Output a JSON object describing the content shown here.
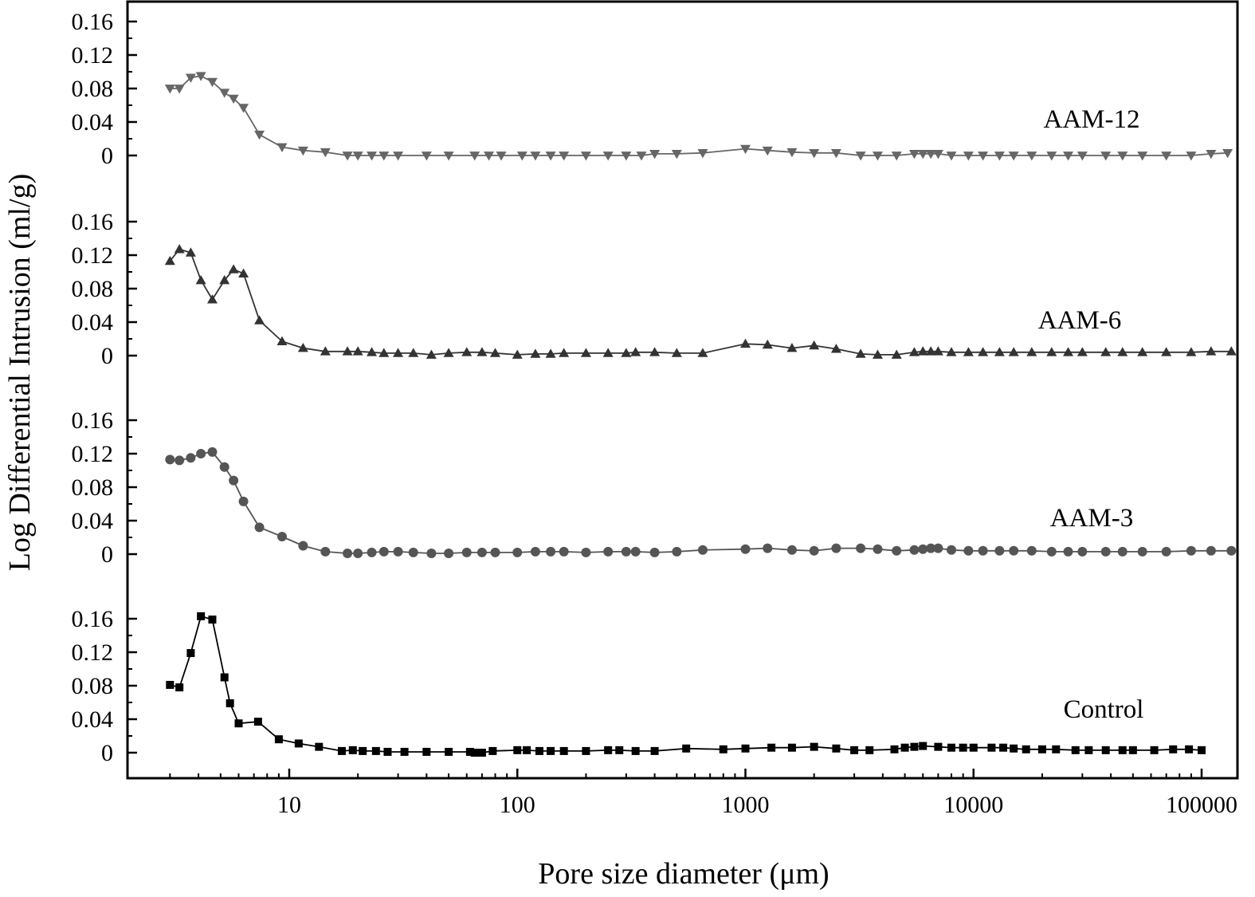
{
  "chart_data": {
    "type": "line",
    "xlabel": "Pore size diameter (μm)",
    "ylabel": "Log Differential Intrusion (ml/g)",
    "x_scale": "log",
    "xlim": [
      2.5,
      150000
    ],
    "x_ticks": [
      10,
      100,
      1000,
      10000,
      100000
    ],
    "x_tick_labels": [
      "10",
      "100",
      "1000",
      "10000",
      "100000"
    ],
    "ylim_per_panel": [
      0,
      0.18
    ],
    "y_ticks": [
      0,
      0.04,
      0.08,
      0.12,
      0.16
    ],
    "y_tick_labels": [
      "0",
      "0.04",
      "0.08",
      "0.12",
      "0.16"
    ],
    "grid": false,
    "legend": "none (labels placed beside each curve)",
    "series": [
      {
        "name": "AAM-12",
        "marker": "triangle-down",
        "color": "#666666",
        "points": [
          [
            3.0,
            0.08
          ],
          [
            3.3,
            0.08
          ],
          [
            3.7,
            0.093
          ],
          [
            4.1,
            0.095
          ],
          [
            4.6,
            0.088
          ],
          [
            5.2,
            0.075
          ],
          [
            5.7,
            0.068
          ],
          [
            6.3,
            0.057
          ],
          [
            7.4,
            0.025
          ],
          [
            9.3,
            0.01
          ],
          [
            11.5,
            0.006
          ],
          [
            14.4,
            0.004
          ],
          [
            18,
            0.0
          ],
          [
            20,
            0.0
          ],
          [
            23,
            0.0
          ],
          [
            26,
            0.0
          ],
          [
            30,
            0.0
          ],
          [
            40,
            0.0
          ],
          [
            50,
            0.0
          ],
          [
            65,
            0.0
          ],
          [
            75,
            0.0
          ],
          [
            85,
            0.0
          ],
          [
            105,
            0.0
          ],
          [
            120,
            0.0
          ],
          [
            140,
            0.0
          ],
          [
            160,
            0.0
          ],
          [
            200,
            0.0
          ],
          [
            250,
            0.0
          ],
          [
            300,
            0.0
          ],
          [
            350,
            0.0
          ],
          [
            400,
            0.002
          ],
          [
            500,
            0.002
          ],
          [
            650,
            0.003
          ],
          [
            1000,
            0.008
          ],
          [
            1250,
            0.006
          ],
          [
            1600,
            0.004
          ],
          [
            2000,
            0.003
          ],
          [
            2500,
            0.003
          ],
          [
            3200,
            0.0
          ],
          [
            3800,
            0.0
          ],
          [
            4600,
            0.0
          ],
          [
            5500,
            0.002
          ],
          [
            6000,
            0.002
          ],
          [
            6500,
            0.002
          ],
          [
            7000,
            0.002
          ],
          [
            8000,
            0.0
          ],
          [
            9500,
            0.0
          ],
          [
            11000,
            0.0
          ],
          [
            13000,
            0.0
          ],
          [
            15000,
            0.0
          ],
          [
            18000,
            0.0
          ],
          [
            22000,
            0.0
          ],
          [
            26000,
            0.0
          ],
          [
            30000,
            0.0
          ],
          [
            38000,
            0.0
          ],
          [
            45000,
            0.0
          ],
          [
            55000,
            0.0
          ],
          [
            70000,
            0.0
          ],
          [
            90000,
            0.0
          ],
          [
            110000,
            0.002
          ],
          [
            130000,
            0.003
          ]
        ]
      },
      {
        "name": "AAM-6",
        "marker": "triangle-up",
        "color": "#333333",
        "points": [
          [
            3.0,
            0.113
          ],
          [
            3.3,
            0.127
          ],
          [
            3.7,
            0.123
          ],
          [
            4.1,
            0.09
          ],
          [
            4.6,
            0.067
          ],
          [
            5.2,
            0.09
          ],
          [
            5.7,
            0.103
          ],
          [
            6.3,
            0.098
          ],
          [
            7.4,
            0.042
          ],
          [
            9.3,
            0.017
          ],
          [
            11.5,
            0.009
          ],
          [
            14.4,
            0.005
          ],
          [
            18,
            0.005
          ],
          [
            20,
            0.005
          ],
          [
            23,
            0.004
          ],
          [
            26,
            0.003
          ],
          [
            30,
            0.003
          ],
          [
            35,
            0.003
          ],
          [
            42,
            0.001
          ],
          [
            50,
            0.003
          ],
          [
            60,
            0.004
          ],
          [
            70,
            0.004
          ],
          [
            80,
            0.003
          ],
          [
            100,
            0.001
          ],
          [
            120,
            0.002
          ],
          [
            140,
            0.002
          ],
          [
            160,
            0.003
          ],
          [
            200,
            0.003
          ],
          [
            250,
            0.003
          ],
          [
            300,
            0.003
          ],
          [
            330,
            0.004
          ],
          [
            400,
            0.004
          ],
          [
            500,
            0.003
          ],
          [
            650,
            0.003
          ],
          [
            1000,
            0.014
          ],
          [
            1250,
            0.013
          ],
          [
            1600,
            0.009
          ],
          [
            2000,
            0.012
          ],
          [
            2500,
            0.008
          ],
          [
            3200,
            0.002
          ],
          [
            3800,
            0.001
          ],
          [
            4600,
            0.001
          ],
          [
            5500,
            0.004
          ],
          [
            6000,
            0.005
          ],
          [
            6500,
            0.005
          ],
          [
            7000,
            0.005
          ],
          [
            8000,
            0.004
          ],
          [
            9500,
            0.004
          ],
          [
            11000,
            0.004
          ],
          [
            13000,
            0.004
          ],
          [
            15000,
            0.004
          ],
          [
            18000,
            0.004
          ],
          [
            22000,
            0.004
          ],
          [
            26000,
            0.004
          ],
          [
            30000,
            0.004
          ],
          [
            38000,
            0.004
          ],
          [
            45000,
            0.004
          ],
          [
            55000,
            0.004
          ],
          [
            70000,
            0.004
          ],
          [
            90000,
            0.004
          ],
          [
            110000,
            0.005
          ],
          [
            135000,
            0.005
          ]
        ]
      },
      {
        "name": "AAM-3",
        "marker": "circle",
        "color": "#555555",
        "points": [
          [
            3.0,
            0.113
          ],
          [
            3.3,
            0.112
          ],
          [
            3.7,
            0.115
          ],
          [
            4.1,
            0.12
          ],
          [
            4.6,
            0.122
          ],
          [
            5.2,
            0.104
          ],
          [
            5.7,
            0.088
          ],
          [
            6.3,
            0.063
          ],
          [
            7.4,
            0.032
          ],
          [
            9.3,
            0.021
          ],
          [
            11.5,
            0.01
          ],
          [
            14.4,
            0.003
          ],
          [
            18,
            0.001
          ],
          [
            20,
            0.001
          ],
          [
            23,
            0.002
          ],
          [
            26,
            0.003
          ],
          [
            30,
            0.003
          ],
          [
            35,
            0.002
          ],
          [
            42,
            0.001
          ],
          [
            50,
            0.001
          ],
          [
            60,
            0.002
          ],
          [
            70,
            0.002
          ],
          [
            80,
            0.002
          ],
          [
            100,
            0.002
          ],
          [
            120,
            0.003
          ],
          [
            140,
            0.003
          ],
          [
            160,
            0.003
          ],
          [
            200,
            0.002
          ],
          [
            250,
            0.003
          ],
          [
            300,
            0.003
          ],
          [
            330,
            0.003
          ],
          [
            400,
            0.002
          ],
          [
            500,
            0.003
          ],
          [
            650,
            0.005
          ],
          [
            1000,
            0.006
          ],
          [
            1250,
            0.007
          ],
          [
            1600,
            0.005
          ],
          [
            2000,
            0.004
          ],
          [
            2500,
            0.007
          ],
          [
            3200,
            0.007
          ],
          [
            3800,
            0.006
          ],
          [
            4600,
            0.004
          ],
          [
            5500,
            0.005
          ],
          [
            6000,
            0.006
          ],
          [
            6500,
            0.007
          ],
          [
            7000,
            0.007
          ],
          [
            8000,
            0.005
          ],
          [
            9500,
            0.004
          ],
          [
            11000,
            0.004
          ],
          [
            13000,
            0.004
          ],
          [
            15000,
            0.004
          ],
          [
            18000,
            0.004
          ],
          [
            22000,
            0.003
          ],
          [
            26000,
            0.003
          ],
          [
            30000,
            0.003
          ],
          [
            38000,
            0.003
          ],
          [
            45000,
            0.003
          ],
          [
            55000,
            0.003
          ],
          [
            70000,
            0.003
          ],
          [
            90000,
            0.004
          ],
          [
            110000,
            0.004
          ],
          [
            135000,
            0.004
          ]
        ]
      },
      {
        "name": "Control",
        "marker": "square",
        "color": "#000000",
        "points": [
          [
            3.0,
            0.081
          ],
          [
            3.3,
            0.078
          ],
          [
            3.7,
            0.119
          ],
          [
            4.1,
            0.163
          ],
          [
            4.6,
            0.159
          ],
          [
            5.2,
            0.09
          ],
          [
            5.5,
            0.059
          ],
          [
            6.0,
            0.035
          ],
          [
            7.3,
            0.037
          ],
          [
            9.0,
            0.016
          ],
          [
            11,
            0.011
          ],
          [
            13.5,
            0.007
          ],
          [
            17,
            0.002
          ],
          [
            19,
            0.003
          ],
          [
            21,
            0.002
          ],
          [
            24,
            0.002
          ],
          [
            27,
            0.001
          ],
          [
            32,
            0.001
          ],
          [
            40,
            0.001
          ],
          [
            50,
            0.001
          ],
          [
            62,
            0.001
          ],
          [
            65,
            0.0
          ],
          [
            70,
            0.0
          ],
          [
            78,
            0.002
          ],
          [
            100,
            0.003
          ],
          [
            110,
            0.003
          ],
          [
            125,
            0.002
          ],
          [
            140,
            0.002
          ],
          [
            160,
            0.002
          ],
          [
            200,
            0.002
          ],
          [
            250,
            0.003
          ],
          [
            280,
            0.003
          ],
          [
            330,
            0.002
          ],
          [
            400,
            0.002
          ],
          [
            550,
            0.005
          ],
          [
            800,
            0.004
          ],
          [
            1000,
            0.005
          ],
          [
            1300,
            0.006
          ],
          [
            1600,
            0.006
          ],
          [
            2000,
            0.007
          ],
          [
            2500,
            0.005
          ],
          [
            3000,
            0.003
          ],
          [
            3500,
            0.003
          ],
          [
            4500,
            0.004
          ],
          [
            5000,
            0.006
          ],
          [
            5500,
            0.007
          ],
          [
            6000,
            0.008
          ],
          [
            7000,
            0.007
          ],
          [
            8000,
            0.006
          ],
          [
            9000,
            0.006
          ],
          [
            10000,
            0.006
          ],
          [
            12000,
            0.006
          ],
          [
            13500,
            0.006
          ],
          [
            15000,
            0.005
          ],
          [
            17000,
            0.004
          ],
          [
            20000,
            0.004
          ],
          [
            23000,
            0.004
          ],
          [
            28000,
            0.003
          ],
          [
            32000,
            0.003
          ],
          [
            38000,
            0.003
          ],
          [
            45000,
            0.003
          ],
          [
            50000,
            0.003
          ],
          [
            62000,
            0.003
          ],
          [
            75000,
            0.004
          ],
          [
            88000,
            0.004
          ],
          [
            100000,
            0.003
          ]
        ]
      }
    ]
  }
}
